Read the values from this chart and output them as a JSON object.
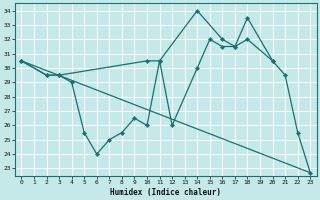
{
  "xlabel": "Humidex (Indice chaleur)",
  "bg_color": "#c5e8e8",
  "grid_color": "#ffffff",
  "line_color": "#1a7070",
  "xlim": [
    -0.5,
    23.5
  ],
  "ylim": [
    22.5,
    34.5
  ],
  "xticks": [
    0,
    1,
    2,
    3,
    4,
    5,
    6,
    7,
    8,
    9,
    10,
    11,
    12,
    13,
    14,
    15,
    16,
    17,
    18,
    19,
    20,
    21,
    22,
    23
  ],
  "yticks": [
    23,
    24,
    25,
    26,
    27,
    28,
    29,
    30,
    31,
    32,
    33,
    34
  ],
  "line1_x": [
    0,
    2,
    3,
    4,
    5,
    6,
    7,
    8,
    9,
    10,
    11,
    12,
    14,
    15,
    16,
    17,
    18,
    20,
    21,
    22,
    23
  ],
  "line1_y": [
    30.5,
    29.5,
    29.5,
    29.0,
    25.5,
    24.0,
    25.0,
    25.5,
    26.5,
    26.0,
    30.5,
    26.0,
    30.0,
    32.0,
    31.5,
    31.5,
    32.0,
    30.5,
    29.5,
    25.5,
    22.7
  ],
  "line2_x": [
    0,
    2,
    3,
    10,
    11,
    14,
    16,
    17,
    18,
    20
  ],
  "line2_y": [
    30.5,
    29.5,
    29.5,
    30.5,
    30.5,
    34.0,
    32.0,
    31.5,
    33.5,
    30.5
  ],
  "line3_x": [
    0,
    23
  ],
  "line3_y": [
    30.5,
    22.7
  ]
}
